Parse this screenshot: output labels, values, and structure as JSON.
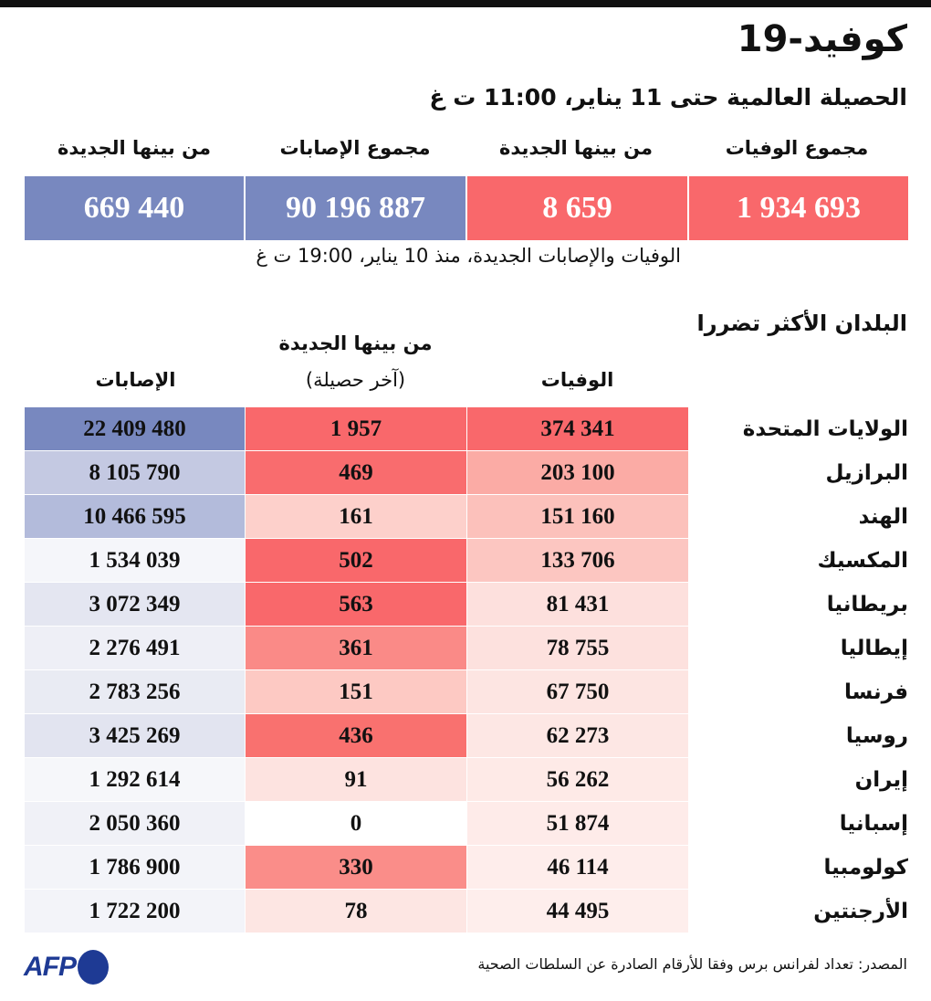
{
  "title": "كوفيد-19",
  "subtitle": "الحصيلة العالمية حتى 11 يناير، 11:00 ت غ",
  "totals": {
    "items": [
      {
        "label": "مجموع الوفيات",
        "value": "1 934 693",
        "color": "#f9686b"
      },
      {
        "label": "من بينها الجديدة",
        "value": "8 659",
        "color": "#f9686b"
      },
      {
        "label": "مجموع الإصابات",
        "value": "90 196 887",
        "color": "#7888bf"
      },
      {
        "label": "من بينها الجديدة",
        "value": "669 440",
        "color": "#7888bf"
      }
    ],
    "note": "الوفيات والإصابات الجديدة، منذ 10 يناير، 19:00 ت غ"
  },
  "chart_data": {
    "type": "table",
    "title": "البلدان الأكثر تضررا",
    "columns": {
      "deaths": "الوفيات",
      "new_deaths_line1": "من بينها الجديدة",
      "new_deaths_line2": "(آخر حصيلة)",
      "cases": "الإصابات"
    },
    "rows": [
      {
        "country": "الولايات المتحدة",
        "deaths": "374 341",
        "new": "1 957",
        "cases": "22 409 480",
        "c1": "#f9686b",
        "c2": "#f9686b",
        "c3": "#7888bf"
      },
      {
        "country": "البرازيل",
        "deaths": "203 100",
        "new": "469",
        "cases": "8 105 790",
        "c1": "#fbaba5",
        "c2": "#f96c6e",
        "c3": "#c4c9e2"
      },
      {
        "country": "الهند",
        "deaths": "151 160",
        "new": "161",
        "cases": "10 466 595",
        "c1": "#fcc1bb",
        "c2": "#fdd0cb",
        "c3": "#b3bbdb"
      },
      {
        "country": "المكسيك",
        "deaths": "133 706",
        "new": "502",
        "cases": "1 534 039",
        "c1": "#fcc6c1",
        "c2": "#f9686b",
        "c3": "#f5f6fa"
      },
      {
        "country": "بريطانيا",
        "deaths": "81 431",
        "new": "563",
        "cases": "3 072 349",
        "c1": "#fde0dd",
        "c2": "#f9686b",
        "c3": "#e4e6f1"
      },
      {
        "country": "إيطاليا",
        "deaths": "78 755",
        "new": "361",
        "cases": "2 276 491",
        "c1": "#fde1de",
        "c2": "#fa8a87",
        "c3": "#eeeff6"
      },
      {
        "country": "فرنسا",
        "deaths": "67 750",
        "new": "151",
        "cases": "2 783 256",
        "c1": "#fde5e2",
        "c2": "#fdc9c3",
        "c3": "#e9ebf3"
      },
      {
        "country": "روسيا",
        "deaths": "62 273",
        "new": "436",
        "cases": "3 425 269",
        "c1": "#fde7e4",
        "c2": "#f9716f",
        "c3": "#e2e4f0"
      },
      {
        "country": "إيران",
        "deaths": "56 262",
        "new": "91",
        "cases": "1 292 614",
        "c1": "#feeae7",
        "c2": "#fde3e0",
        "c3": "#f6f7fa"
      },
      {
        "country": "إسبانيا",
        "deaths": "51 874",
        "new": "0",
        "cases": "2 050 360",
        "c1": "#feebe9",
        "c2": "#ffffff",
        "c3": "#f0f1f7"
      },
      {
        "country": "كولومبيا",
        "deaths": "46 114",
        "new": "330",
        "cases": "1 786 900",
        "c1": "#feedeb",
        "c2": "#fa8d89",
        "c3": "#f3f4f9"
      },
      {
        "country": "الأرجنتين",
        "deaths": "44 495",
        "new": "78",
        "cases": "1 722 200",
        "c1": "#feeeec",
        "c2": "#fde6e3",
        "c3": "#f3f4f9"
      }
    ]
  },
  "footer": {
    "source": "المصدر: تعداد لفرانس برس وفقا للأرقام الصادرة عن السلطات الصحية",
    "logo": "AFP"
  }
}
